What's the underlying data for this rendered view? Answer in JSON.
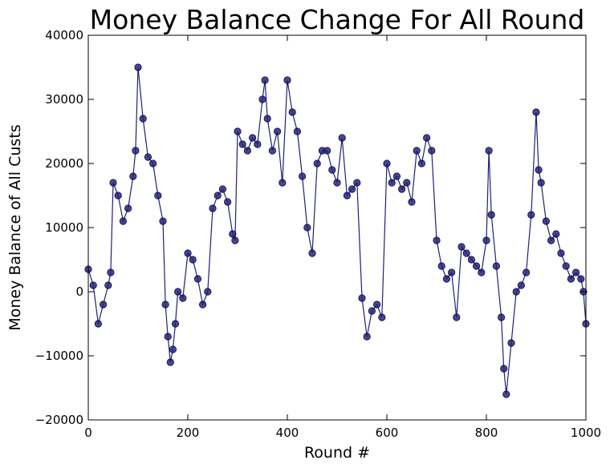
{
  "chart_data": {
    "type": "line",
    "title": "Money Balance Change For All Round",
    "xlabel": "Round #",
    "ylabel": "Money Balance of All Custs",
    "xlim": [
      0,
      1000
    ],
    "ylim": [
      -20000,
      40000
    ],
    "xticks": [
      0,
      200,
      400,
      600,
      800,
      1000
    ],
    "yticks": [
      -20000,
      -10000,
      0,
      10000,
      20000,
      30000,
      40000
    ],
    "xtick_labels": [
      "0",
      "200",
      "400",
      "600",
      "800",
      "1000"
    ],
    "ytick_labels": [
      "−20000",
      "−10000",
      "0",
      "10000",
      "20000",
      "30000",
      "40000"
    ],
    "grid": false,
    "marker": "circle",
    "series": [
      {
        "color": "#1f1f7a",
        "points": [
          [
            0,
            3500
          ],
          [
            10,
            1000
          ],
          [
            20,
            -5000
          ],
          [
            30,
            -2000
          ],
          [
            40,
            1000
          ],
          [
            45,
            3000
          ],
          [
            50,
            17000
          ],
          [
            60,
            15000
          ],
          [
            70,
            11000
          ],
          [
            80,
            13000
          ],
          [
            90,
            18000
          ],
          [
            95,
            22000
          ],
          [
            100,
            35000
          ],
          [
            110,
            27000
          ],
          [
            120,
            21000
          ],
          [
            130,
            20000
          ],
          [
            140,
            15000
          ],
          [
            150,
            11000
          ],
          [
            155,
            -2000
          ],
          [
            160,
            -7000
          ],
          [
            165,
            -11000
          ],
          [
            170,
            -9000
          ],
          [
            175,
            -5000
          ],
          [
            180,
            0
          ],
          [
            190,
            -1000
          ],
          [
            200,
            6000
          ],
          [
            210,
            5000
          ],
          [
            220,
            2000
          ],
          [
            230,
            -2000
          ],
          [
            240,
            0
          ],
          [
            250,
            13000
          ],
          [
            260,
            15000
          ],
          [
            270,
            16000
          ],
          [
            280,
            14000
          ],
          [
            290,
            9000
          ],
          [
            295,
            8000
          ],
          [
            300,
            25000
          ],
          [
            310,
            23000
          ],
          [
            320,
            22000
          ],
          [
            330,
            24000
          ],
          [
            340,
            23000
          ],
          [
            350,
            30000
          ],
          [
            355,
            33000
          ],
          [
            360,
            27000
          ],
          [
            370,
            22000
          ],
          [
            380,
            25000
          ],
          [
            390,
            17000
          ],
          [
            400,
            33000
          ],
          [
            410,
            28000
          ],
          [
            420,
            25000
          ],
          [
            430,
            18000
          ],
          [
            440,
            10000
          ],
          [
            450,
            6000
          ],
          [
            460,
            20000
          ],
          [
            470,
            22000
          ],
          [
            480,
            22000
          ],
          [
            490,
            19000
          ],
          [
            500,
            17000
          ],
          [
            510,
            24000
          ],
          [
            520,
            15000
          ],
          [
            530,
            16000
          ],
          [
            540,
            17000
          ],
          [
            550,
            -1000
          ],
          [
            560,
            -7000
          ],
          [
            570,
            -3000
          ],
          [
            580,
            -2000
          ],
          [
            590,
            -4000
          ],
          [
            600,
            20000
          ],
          [
            610,
            17000
          ],
          [
            620,
            18000
          ],
          [
            630,
            16000
          ],
          [
            640,
            17000
          ],
          [
            650,
            14000
          ],
          [
            660,
            22000
          ],
          [
            670,
            20000
          ],
          [
            680,
            24000
          ],
          [
            690,
            22000
          ],
          [
            700,
            8000
          ],
          [
            710,
            4000
          ],
          [
            720,
            2000
          ],
          [
            730,
            3000
          ],
          [
            740,
            -4000
          ],
          [
            750,
            7000
          ],
          [
            760,
            6000
          ],
          [
            770,
            5000
          ],
          [
            780,
            4000
          ],
          [
            790,
            3000
          ],
          [
            800,
            8000
          ],
          [
            805,
            22000
          ],
          [
            810,
            12000
          ],
          [
            820,
            4000
          ],
          [
            830,
            -4000
          ],
          [
            835,
            -12000
          ],
          [
            840,
            -16000
          ],
          [
            850,
            -8000
          ],
          [
            860,
            0
          ],
          [
            870,
            1000
          ],
          [
            880,
            3000
          ],
          [
            890,
            12000
          ],
          [
            900,
            28000
          ],
          [
            905,
            19000
          ],
          [
            910,
            17000
          ],
          [
            920,
            11000
          ],
          [
            930,
            8000
          ],
          [
            940,
            9000
          ],
          [
            950,
            6000
          ],
          [
            960,
            4000
          ],
          [
            970,
            2000
          ],
          [
            980,
            3000
          ],
          [
            990,
            2000
          ],
          [
            995,
            0
          ],
          [
            1000,
            -5000
          ]
        ]
      }
    ]
  }
}
